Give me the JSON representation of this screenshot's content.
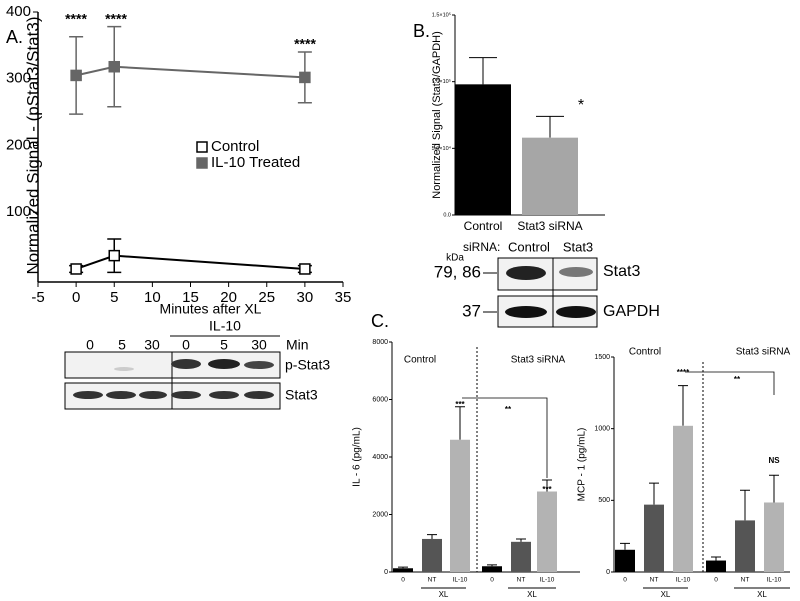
{
  "panel_labels": [
    "A.",
    "B.",
    "C."
  ],
  "chart_data": [
    {
      "type": "line",
      "x_label": "Minutes after XL",
      "y_label": "Normalized Signal - (pStat3/Stat3)",
      "x": [
        0,
        5,
        30
      ],
      "xlim": [
        -5,
        35
      ],
      "xticks": [
        -5,
        0,
        5,
        10,
        15,
        20,
        25,
        30,
        35
      ],
      "ylim": [
        0,
        400
      ],
      "yticks": [
        100,
        200,
        300,
        400
      ],
      "series": [
        {
          "name": "Control",
          "color": "#000000",
          "values": [
            15,
            35,
            15
          ],
          "errors": [
            5,
            25,
            5
          ]
        },
        {
          "name": "IL-10 Treated",
          "color": "#666666",
          "values": [
            305,
            318,
            302
          ],
          "errors": [
            58,
            60,
            38
          ]
        }
      ],
      "annotations": [
        "****",
        "****",
        "****"
      ]
    },
    {
      "type": "bar",
      "y_label": "Normalized Signal (Stat3/GAPDH)",
      "categories": [
        "Control",
        "Stat3 siRNA"
      ],
      "values": [
        98000,
        58000
      ],
      "errors": [
        20000,
        16000
      ],
      "colors": [
        "#000000",
        "#a6a6a6"
      ],
      "ylim": [
        0,
        150000
      ],
      "yticks": [
        {
          "value": 0,
          "label": "0.0"
        },
        {
          "value": 50000,
          "label": "5.0×10⁴"
        },
        {
          "value": 100000,
          "label": "1.0×10⁵"
        },
        {
          "value": 150000,
          "label": "1.5×10⁵"
        }
      ],
      "annotations": [
        "*"
      ]
    },
    {
      "type": "bar",
      "y_label": "IL - 6 (pg/mL)",
      "categories": [
        "0",
        "NT",
        "IL-10",
        "0",
        "NT",
        "IL-10"
      ],
      "values": [
        130,
        1150,
        4600,
        200,
        1050,
        2800
      ],
      "errors": [
        40,
        150,
        1150,
        50,
        100,
        400
      ],
      "colors": [
        "#000000",
        "#555555",
        "#b3b3b3",
        "#000000",
        "#555555",
        "#b3b3b3"
      ],
      "ylim": [
        0,
        8000
      ],
      "yticks": [
        0,
        2000,
        4000,
        6000,
        8000
      ],
      "group_labels": [
        "Control",
        "Stat3 siRNA"
      ],
      "xl_labels": [
        "XL",
        "XL"
      ],
      "annotations": [
        "***",
        "***",
        "**"
      ]
    },
    {
      "type": "bar",
      "y_label": "MCP - 1 (pg/mL)",
      "categories": [
        "0",
        "NT",
        "IL-10",
        "0",
        "NT",
        "IL-10"
      ],
      "values": [
        155,
        470,
        1020,
        80,
        360,
        485
      ],
      "errors": [
        45,
        150,
        280,
        25,
        210,
        190
      ],
      "colors": [
        "#000000",
        "#555555",
        "#b3b3b3",
        "#000000",
        "#555555",
        "#b3b3b3"
      ],
      "ylim": [
        0,
        1500
      ],
      "yticks": [
        0,
        500,
        1000,
        1500
      ],
      "group_labels": [
        "Control",
        "Stat3 siRNA"
      ],
      "xl_labels": [
        "XL",
        "XL"
      ],
      "annotations": [
        "****",
        "**",
        "NS"
      ]
    }
  ],
  "blot_a": {
    "lanes": [
      "0",
      "5",
      "30",
      "0",
      "5",
      "30"
    ],
    "treatment": "IL-10",
    "unit": "Min",
    "rows": [
      "p-Stat3",
      "Stat3"
    ]
  },
  "blot_b": {
    "prefix": "siRNA:",
    "lanes": [
      "Control",
      "Stat3"
    ],
    "kda": "kDa",
    "weights": [
      "79, 86",
      "37"
    ],
    "rows": [
      "Stat3",
      "GAPDH"
    ]
  }
}
